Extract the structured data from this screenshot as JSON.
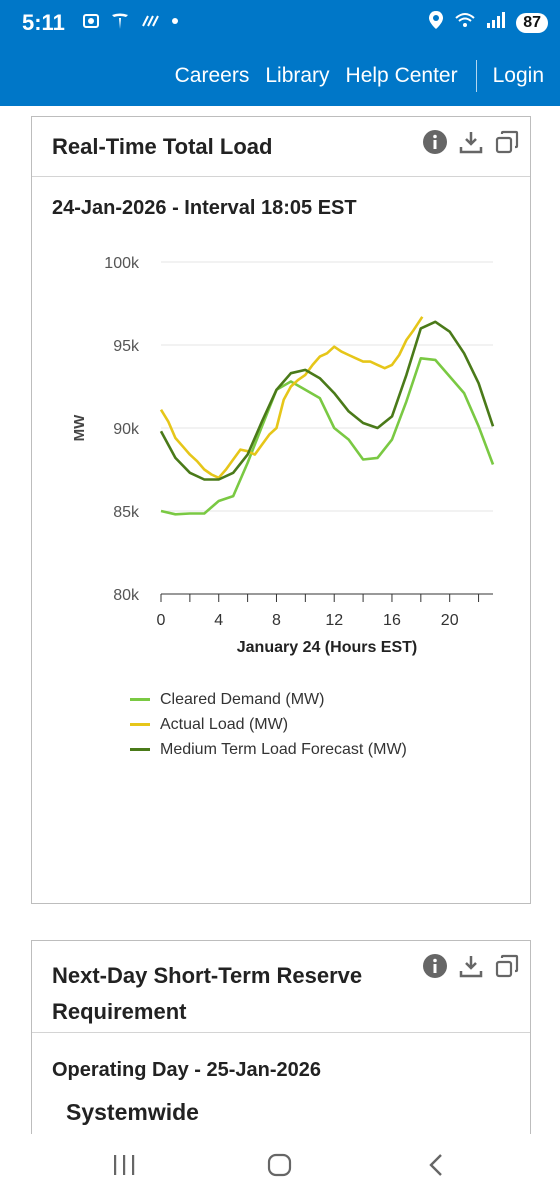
{
  "status_bar": {
    "time": "5:11",
    "battery": "87",
    "left_icons": [
      "screenshot-icon",
      "tesla-icon",
      "tesla-icon",
      "dot-icon"
    ],
    "right_icons": [
      "location-icon",
      "wifi-icon",
      "signal-icon"
    ]
  },
  "nav": {
    "links": [
      "Careers",
      "Library",
      "Help Center"
    ],
    "login": "Login",
    "background": "#0077c8"
  },
  "card1": {
    "title": "Real-Time Total Load",
    "subtitle": "24-Jan-2026 - Interval 18:05 EST",
    "tools": [
      "info-icon",
      "download-icon",
      "popout-icon"
    ]
  },
  "card2": {
    "title_line1": "Next-Day Short-Term Reserve",
    "title_line2": "Requirement",
    "operating_day": "Operating Day - 25-Jan-2026",
    "section": "Systemwide",
    "tools": [
      "info-icon",
      "download-icon",
      "popout-icon"
    ]
  },
  "chart_data": {
    "type": "line",
    "xlabel": "January 24 (Hours EST)",
    "ylabel": "MW",
    "xlim": [
      0,
      23
    ],
    "ylim": [
      80000,
      100000
    ],
    "x_ticks": [
      "0",
      "4",
      "8",
      "12",
      "16",
      "20"
    ],
    "y_ticks": [
      "80k",
      "85k",
      "90k",
      "95k",
      "100k"
    ],
    "legend_position": "bottom",
    "series": [
      {
        "name": "Cleared Demand (MW)",
        "color": "#7ac943",
        "x": [
          0,
          1,
          2,
          3,
          4,
          5,
          6,
          7,
          8,
          9,
          10,
          11,
          12,
          13,
          14,
          15,
          16,
          17,
          18,
          19,
          20,
          21,
          22,
          23
        ],
        "y": [
          85000,
          84800,
          84850,
          84850,
          85600,
          85900,
          87900,
          90100,
          92300,
          92800,
          92300,
          91800,
          90000,
          89300,
          88100,
          88200,
          89300,
          91600,
          94200,
          94100,
          93100,
          92100,
          90100,
          87800
        ]
      },
      {
        "name": "Actual Load (MW)",
        "color": "#e6c619",
        "x": [
          0,
          0.5,
          1,
          1.5,
          2,
          2.5,
          3,
          3.5,
          4,
          4.5,
          5,
          5.5,
          6,
          6.5,
          7,
          7.5,
          8,
          8.5,
          9,
          9.5,
          10,
          10.5,
          11,
          11.5,
          12,
          12.5,
          13,
          13.5,
          14,
          14.5,
          15,
          15.5,
          16,
          16.5,
          17,
          17.5,
          18.1
        ],
        "y": [
          91100,
          90400,
          89400,
          88900,
          88400,
          88000,
          87500,
          87200,
          87000,
          87500,
          88100,
          88700,
          88600,
          88400,
          89000,
          89600,
          90000,
          91700,
          92500,
          92900,
          93200,
          93800,
          94300,
          94500,
          94900,
          94600,
          94400,
          94200,
          94000,
          94000,
          93800,
          93600,
          93800,
          94400,
          95300,
          95900,
          96700
        ]
      },
      {
        "name": "Medium Term Load Forecast (MW)",
        "color": "#4a7a19",
        "x": [
          0,
          1,
          2,
          3,
          4,
          5,
          6,
          7,
          8,
          9,
          10,
          11,
          12,
          13,
          14,
          15,
          16,
          17,
          18,
          19,
          20,
          21,
          22,
          23
        ],
        "y": [
          89800,
          88200,
          87300,
          86900,
          86900,
          87300,
          88400,
          90400,
          92300,
          93300,
          93500,
          93000,
          92100,
          91000,
          90300,
          90000,
          90700,
          93200,
          96000,
          96400,
          95800,
          94500,
          92700,
          90100
        ]
      }
    ]
  }
}
